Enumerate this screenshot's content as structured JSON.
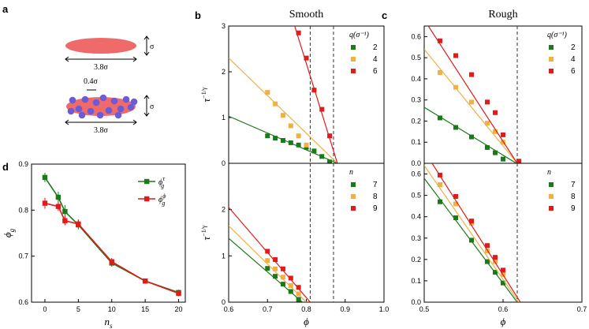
{
  "colors": {
    "green": "#1a7a1a",
    "orange": "#f0b044",
    "red": "#e21a1a",
    "ellipse": "#ef6a6a",
    "bead": "#6b5bd6"
  },
  "panel_labels": {
    "a": "a",
    "b": "b",
    "c": "c",
    "d": "d"
  },
  "schematic": {
    "length_top": "3.8σ",
    "height_top": "σ",
    "bead_size": "0.4σ",
    "length_bottom": "3.8σ",
    "height_bottom": "σ"
  },
  "chart_data": [
    {
      "id": "b-top",
      "type": "scatter",
      "title": "Smooth",
      "xlabel": "ϕ",
      "ylabel": "τ^−1/γ",
      "ylabel_base": "τ",
      "ylabel_sup": "−1/γ",
      "xlim": [
        0.6,
        1.0
      ],
      "ylim": [
        0,
        3
      ],
      "yticks": [
        0,
        1,
        2,
        3
      ],
      "legend_title": "q(σ⁻¹)",
      "guide_lines": [
        0.81,
        0.87
      ],
      "series": [
        {
          "name": "2",
          "color": "green",
          "x": [
            0.7,
            0.72,
            0.74,
            0.76,
            0.78,
            0.8,
            0.82,
            0.84,
            0.86
          ],
          "y": [
            0.6,
            0.55,
            0.5,
            0.45,
            0.4,
            0.35,
            0.27,
            0.15,
            0.03
          ],
          "fit": [
            [
              0.6,
              1.03
            ],
            [
              0.88,
              0.0
            ]
          ]
        },
        {
          "name": "4",
          "color": "orange",
          "x": [
            0.7,
            0.72,
            0.74,
            0.76,
            0.78,
            0.8
          ],
          "y": [
            1.55,
            1.3,
            1.05,
            0.82,
            0.6,
            0.4
          ],
          "fit": [
            [
              0.6,
              2.3
            ],
            [
              0.88,
              0.0
            ]
          ]
        },
        {
          "name": "6",
          "color": "red",
          "x": [
            0.78,
            0.8,
            0.82,
            0.84,
            0.86
          ],
          "y": [
            2.85,
            2.3,
            1.6,
            1.18,
            0.6
          ],
          "fit": [
            [
              0.77,
              3.0
            ],
            [
              0.88,
              0.0
            ]
          ]
        }
      ]
    },
    {
      "id": "b-bottom",
      "type": "scatter",
      "xlabel": "ϕ",
      "ylabel": "τ^−1/γ",
      "ylabel_base": "τ",
      "ylabel_sup": "−1/γ",
      "xlim": [
        0.6,
        1.0
      ],
      "ylim": [
        0,
        3
      ],
      "yticks": [
        0,
        1,
        2
      ],
      "xticks": [
        0.6,
        0.7,
        0.8,
        0.9,
        1.0
      ],
      "xticklabels": [
        "0.6",
        "0.7",
        "0.8",
        "0.9",
        "1.0"
      ],
      "legend_title": "n",
      "guide_lines": [
        0.81,
        0.87
      ],
      "series": [
        {
          "name": "7",
          "color": "green",
          "x": [
            0.7,
            0.72,
            0.74,
            0.76,
            0.78
          ],
          "y": [
            0.73,
            0.56,
            0.39,
            0.23,
            0.06
          ],
          "fit": [
            [
              0.6,
              1.38
            ],
            [
              0.79,
              0.0
            ]
          ]
        },
        {
          "name": "8",
          "color": "orange",
          "x": [
            0.7,
            0.72,
            0.74,
            0.76,
            0.78
          ],
          "y": [
            0.9,
            0.72,
            0.54,
            0.36,
            0.18
          ],
          "fit": [
            [
              0.6,
              1.65
            ],
            [
              0.8,
              0.0
            ]
          ]
        },
        {
          "name": "9",
          "color": "red",
          "x": [
            0.7,
            0.72,
            0.74,
            0.76,
            0.78
          ],
          "y": [
            1.1,
            0.92,
            0.72,
            0.52,
            0.32
          ],
          "fit": [
            [
              0.6,
              2.05
            ],
            [
              0.81,
              0.0
            ]
          ]
        }
      ]
    },
    {
      "id": "c-top",
      "type": "scatter",
      "title": "Rough",
      "xlabel": "ϕ",
      "ylabel": "",
      "xlim": [
        0.5,
        0.7
      ],
      "ylim": [
        0,
        0.65
      ],
      "yticks": [
        0,
        0.1,
        0.2,
        0.3,
        0.4,
        0.5,
        0.6
      ],
      "yticklabels": [
        "0.0",
        "0.1",
        "0.2",
        "0.3",
        "0.4",
        "0.5",
        "0.6"
      ],
      "legend_title": "q(σ⁻¹)",
      "guide_lines": [
        0.618
      ],
      "series": [
        {
          "name": "2",
          "color": "green",
          "x": [
            0.52,
            0.54,
            0.56,
            0.58,
            0.59,
            0.6
          ],
          "y": [
            0.215,
            0.17,
            0.125,
            0.075,
            0.05,
            0.02
          ],
          "fit": [
            [
              0.5,
              0.265
            ],
            [
              0.617,
              0.0
            ]
          ]
        },
        {
          "name": "4",
          "color": "orange",
          "x": [
            0.52,
            0.54,
            0.56,
            0.58,
            0.59,
            0.6
          ],
          "y": [
            0.43,
            0.36,
            0.29,
            0.19,
            0.15,
            0.1
          ],
          "fit": [
            [
              0.5,
              0.54
            ],
            [
              0.618,
              0.0
            ]
          ]
        },
        {
          "name": "6",
          "color": "red",
          "x": [
            0.52,
            0.54,
            0.56,
            0.58,
            0.59,
            0.6,
            0.62
          ],
          "y": [
            0.58,
            0.51,
            0.42,
            0.29,
            0.24,
            0.135,
            0.01
          ],
          "fit": [
            [
              0.5,
              0.68
            ],
            [
              0.618,
              0.0
            ]
          ]
        }
      ]
    },
    {
      "id": "c-bottom",
      "type": "scatter",
      "xlabel": "ϕ",
      "ylabel": "",
      "xlim": [
        0.5,
        0.7
      ],
      "ylim": [
        0,
        0.65
      ],
      "yticks": [
        0,
        0.1,
        0.2,
        0.3,
        0.4,
        0.5,
        0.6
      ],
      "yticklabels": [
        "0.0",
        "0.1",
        "0.2",
        "0.3",
        "0.4",
        "0.5",
        "0.6"
      ],
      "xticks": [
        0.5,
        0.6,
        0.7
      ],
      "xticklabels": [
        "0.5",
        "0.6",
        "0.7"
      ],
      "legend_title": "n",
      "guide_lines": [
        0.618
      ],
      "series": [
        {
          "name": "7",
          "color": "green",
          "x": [
            0.52,
            0.54,
            0.56,
            0.58,
            0.59,
            0.6
          ],
          "y": [
            0.47,
            0.395,
            0.29,
            0.19,
            0.14,
            0.09
          ],
          "fit": [
            [
              0.5,
              0.58
            ],
            [
              0.618,
              0.0
            ]
          ]
        },
        {
          "name": "8",
          "color": "orange",
          "x": [
            0.52,
            0.54,
            0.56,
            0.58,
            0.59,
            0.6
          ],
          "y": [
            0.55,
            0.46,
            0.37,
            0.24,
            0.19,
            0.13
          ],
          "fit": [
            [
              0.5,
              0.64
            ],
            [
              0.62,
              0.0
            ]
          ]
        },
        {
          "name": "9",
          "color": "red",
          "x": [
            0.52,
            0.54,
            0.56,
            0.58,
            0.59,
            0.6
          ],
          "y": [
            0.595,
            0.495,
            0.38,
            0.265,
            0.21,
            0.15
          ],
          "fit": [
            [
              0.51,
              0.65
            ],
            [
              0.622,
              0.0
            ]
          ]
        }
      ]
    },
    {
      "id": "d",
      "type": "line",
      "xlabel": "n_s",
      "xlabel_base": "n",
      "xlabel_sub": "s",
      "ylabel": "ϕ_g",
      "ylabel_base": "ϕ",
      "ylabel_sub": "g",
      "xlim": [
        -2,
        21
      ],
      "ylim": [
        0.6,
        0.9
      ],
      "xticks": [
        0,
        5,
        10,
        15,
        20
      ],
      "xticklabels": [
        "0",
        "5",
        "10",
        "15",
        "20"
      ],
      "yticks": [
        0.6,
        0.7,
        0.8,
        0.9
      ],
      "yticklabels": [
        "0.6",
        "0.7",
        "0.8",
        "0.9"
      ],
      "series": [
        {
          "name": "ϕ_g^τ",
          "label_base": "ϕ",
          "label_sub": "g",
          "label_sup": "τ",
          "color": "green",
          "x": [
            0,
            2,
            3,
            5,
            10,
            15,
            20
          ],
          "y": [
            0.871,
            0.828,
            0.797,
            0.768,
            0.685,
            0.646,
            0.621
          ],
          "err": [
            0.01,
            0.012,
            0.014,
            0.01,
            0.008,
            0.005,
            0.006
          ]
        },
        {
          "name": "ϕ_g^ϕ",
          "label_base": "ϕ",
          "label_sub": "g",
          "label_sup": "ϕ",
          "color": "red",
          "x": [
            0,
            2,
            3,
            5,
            10,
            15,
            20
          ],
          "y": [
            0.815,
            0.808,
            0.777,
            0.77,
            0.688,
            0.646,
            0.619
          ],
          "err": [
            0.012,
            0.01,
            0.01,
            0.01,
            0.008,
            0.005,
            0.006
          ]
        }
      ]
    }
  ]
}
